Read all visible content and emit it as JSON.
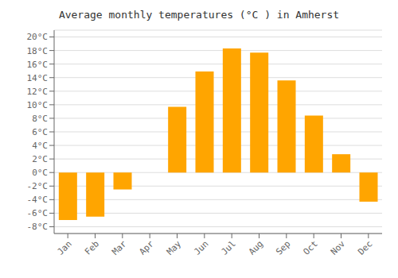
{
  "chart_data": {
    "type": "bar",
    "title": "Average monthly temperatures (°C ) in Amherst",
    "categories": [
      "Jan",
      "Feb",
      "Mar",
      "Apr",
      "May",
      "Jun",
      "Jul",
      "Aug",
      "Sep",
      "Oct",
      "Nov",
      "Dec"
    ],
    "values": [
      -7.0,
      -6.5,
      -2.5,
      0.0,
      9.7,
      14.9,
      18.3,
      17.7,
      13.6,
      8.4,
      2.7,
      -4.3
    ],
    "color": "#FFA500",
    "ylim": [
      -9,
      21
    ],
    "yticks": [
      {
        "value": -8,
        "label": "-8°C"
      },
      {
        "value": -6,
        "label": "-6°C"
      },
      {
        "value": -4,
        "label": "-4°C"
      },
      {
        "value": -2,
        "label": "-2°C"
      },
      {
        "value": 0,
        "label": "0°C"
      },
      {
        "value": 2,
        "label": "2°C"
      },
      {
        "value": 4,
        "label": "4°C"
      },
      {
        "value": 6,
        "label": "6°C"
      },
      {
        "value": 8,
        "label": "8°C"
      },
      {
        "value": 10,
        "label": "10°C"
      },
      {
        "value": 12,
        "label": "12°C"
      },
      {
        "value": 14,
        "label": "14°C"
      },
      {
        "value": 16,
        "label": "16°C"
      },
      {
        "value": 18,
        "label": "18°C"
      },
      {
        "value": 20,
        "label": "20°C"
      }
    ],
    "grid": true
  }
}
